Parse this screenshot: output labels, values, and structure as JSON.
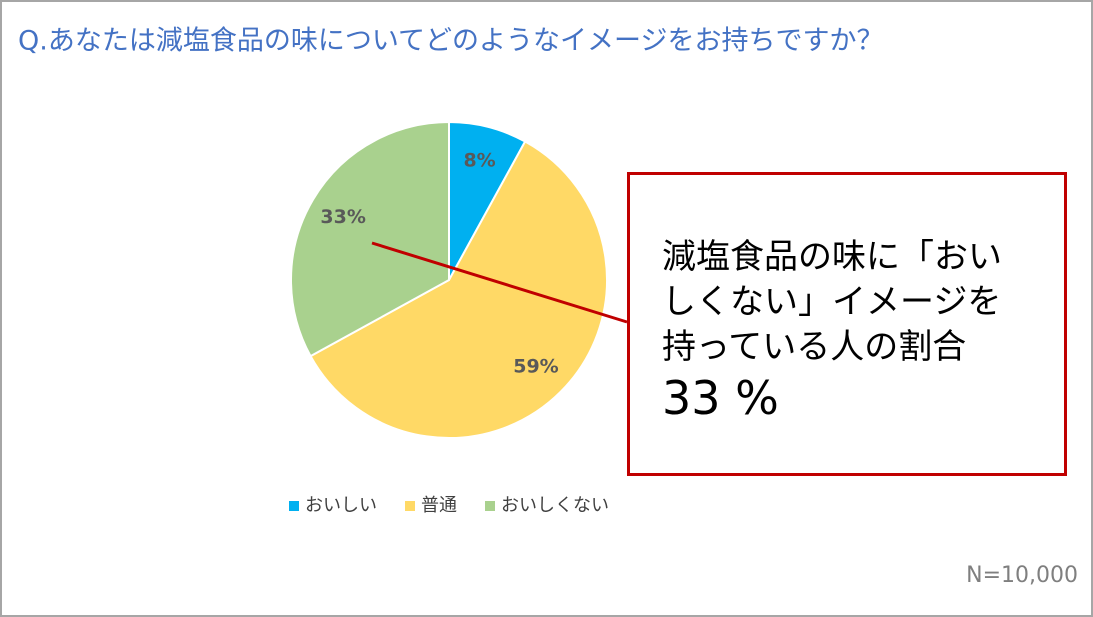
{
  "chart_data": {
    "type": "pie",
    "title": "Q.あなたは減塩食品の味についてどのようなイメージをお持ちですか？",
    "categories": [
      "おいしい",
      "普通",
      "おいしくない"
    ],
    "values": [
      8,
      59,
      33
    ],
    "value_labels": [
      "8%",
      "59%",
      "33%"
    ],
    "colors": [
      "#00b0f0",
      "#ffd966",
      "#a9d18e"
    ],
    "legend": "bottom",
    "annotation": "減塩食品の味に「おいしくない」イメージを持っている人の割合",
    "annotation_value": "33 %",
    "note": "N=10,000"
  }
}
